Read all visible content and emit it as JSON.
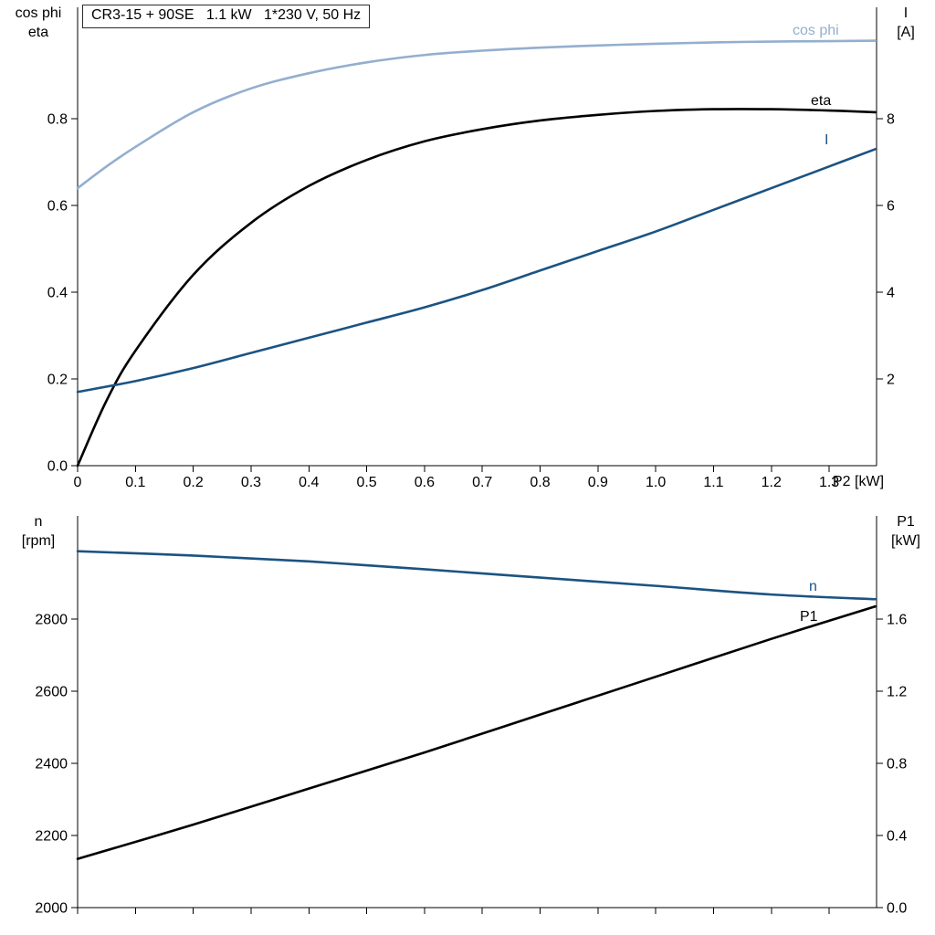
{
  "chart_data": [
    {
      "type": "line",
      "title": "CR3-15 + 90SE   1.1 kW   1*230 V, 50 Hz",
      "axis_left_label": [
        "cos phi",
        "eta"
      ],
      "axis_right_label": [
        "I",
        "[A]"
      ],
      "xlabel": "P2 [kW]",
      "grid": false,
      "legend_position": "inline-right",
      "xlim": [
        0,
        1.382
      ],
      "ylim_left": [
        0,
        1.057
      ],
      "ylim_right": [
        0,
        10.57
      ],
      "xticks": [
        {
          "v": 0,
          "t": "0"
        },
        {
          "v": 0.1,
          "t": "0.1"
        },
        {
          "v": 0.2,
          "t": "0.2"
        },
        {
          "v": 0.3,
          "t": "0.3"
        },
        {
          "v": 0.4,
          "t": "0.4"
        },
        {
          "v": 0.5,
          "t": "0.5"
        },
        {
          "v": 0.6,
          "t": "0.6"
        },
        {
          "v": 0.7,
          "t": "0.7"
        },
        {
          "v": 0.8,
          "t": "0.8"
        },
        {
          "v": 0.9,
          "t": "0.9"
        },
        {
          "v": 1.0,
          "t": "1.0"
        },
        {
          "v": 1.1,
          "t": "1.1"
        },
        {
          "v": 1.2,
          "t": "1.2"
        },
        {
          "v": 1.3,
          "t": "1.3"
        }
      ],
      "yticks_left": [
        {
          "v": 0,
          "t": "0.0"
        },
        {
          "v": 0.2,
          "t": "0.2"
        },
        {
          "v": 0.4,
          "t": "0.4"
        },
        {
          "v": 0.6,
          "t": "0.6"
        },
        {
          "v": 0.8,
          "t": "0.8"
        }
      ],
      "yticks_right": [
        {
          "v": 2,
          "t": "2"
        },
        {
          "v": 4,
          "t": "4"
        },
        {
          "v": 6,
          "t": "6"
        },
        {
          "v": 8,
          "t": "8"
        }
      ],
      "series": [
        {
          "name": "cos phi",
          "axis": "left",
          "color": "#93afce",
          "x": [
            0,
            0.05,
            0.1,
            0.2,
            0.3,
            0.4,
            0.5,
            0.6,
            0.7,
            0.8,
            0.9,
            1.0,
            1.1,
            1.2,
            1.3,
            1.38
          ],
          "y": [
            0.64,
            0.69,
            0.735,
            0.815,
            0.87,
            0.905,
            0.93,
            0.947,
            0.957,
            0.964,
            0.969,
            0.973,
            0.976,
            0.978,
            0.979,
            0.98
          ]
        },
        {
          "name": "eta",
          "axis": "left",
          "color": "#000000",
          "x": [
            0,
            0.05,
            0.1,
            0.2,
            0.3,
            0.4,
            0.5,
            0.6,
            0.7,
            0.8,
            0.9,
            1.0,
            1.1,
            1.2,
            1.3,
            1.38
          ],
          "y": [
            0,
            0.15,
            0.265,
            0.44,
            0.56,
            0.645,
            0.705,
            0.748,
            0.776,
            0.796,
            0.809,
            0.818,
            0.822,
            0.822,
            0.819,
            0.815
          ]
        },
        {
          "name": "I",
          "axis": "right",
          "color": "#1b5382",
          "x": [
            0,
            0.1,
            0.2,
            0.3,
            0.4,
            0.5,
            0.6,
            0.7,
            0.8,
            0.9,
            1.0,
            1.1,
            1.2,
            1.3,
            1.38
          ],
          "y": [
            1.7,
            1.95,
            2.25,
            2.6,
            2.95,
            3.3,
            3.65,
            4.05,
            4.5,
            4.95,
            5.4,
            5.9,
            6.4,
            6.9,
            7.3
          ]
        }
      ]
    },
    {
      "type": "line",
      "title": "",
      "axis_left_label": [
        "n",
        "[rpm]"
      ],
      "axis_right_label": [
        "P1",
        "[kW]"
      ],
      "xlabel": "",
      "grid": false,
      "legend_position": "inline-right",
      "xlim": [
        0,
        1.382
      ],
      "ylim_left": [
        2000,
        3086
      ],
      "ylim_right": [
        0,
        2.172
      ],
      "xticks": [
        {
          "v": 0,
          "t": ""
        },
        {
          "v": 0.1,
          "t": ""
        },
        {
          "v": 0.2,
          "t": ""
        },
        {
          "v": 0.3,
          "t": ""
        },
        {
          "v": 0.4,
          "t": ""
        },
        {
          "v": 0.5,
          "t": ""
        },
        {
          "v": 0.6,
          "t": ""
        },
        {
          "v": 0.7,
          "t": ""
        },
        {
          "v": 0.8,
          "t": ""
        },
        {
          "v": 0.9,
          "t": ""
        },
        {
          "v": 1.0,
          "t": ""
        },
        {
          "v": 1.1,
          "t": ""
        },
        {
          "v": 1.2,
          "t": ""
        },
        {
          "v": 1.3,
          "t": ""
        }
      ],
      "yticks_left": [
        {
          "v": 2000,
          "t": "2000"
        },
        {
          "v": 2200,
          "t": "2200"
        },
        {
          "v": 2400,
          "t": "2400"
        },
        {
          "v": 2600,
          "t": "2600"
        },
        {
          "v": 2800,
          "t": "2800"
        }
      ],
      "yticks_right": [
        {
          "v": 0,
          "t": "0.0"
        },
        {
          "v": 0.4,
          "t": "0.4"
        },
        {
          "v": 0.8,
          "t": "0.8"
        },
        {
          "v": 1.2,
          "t": "1.2"
        },
        {
          "v": 1.6,
          "t": "1.6"
        }
      ],
      "series": [
        {
          "name": "n",
          "axis": "left",
          "color": "#1b5382",
          "x": [
            0,
            0.2,
            0.4,
            0.6,
            0.8,
            1.0,
            1.2,
            1.38
          ],
          "y": [
            2988,
            2976,
            2960,
            2938,
            2915,
            2892,
            2868,
            2855
          ]
        },
        {
          "name": "P1",
          "axis": "right",
          "color": "#000000",
          "x": [
            0,
            0.2,
            0.4,
            0.6,
            0.8,
            1.0,
            1.2,
            1.38
          ],
          "y": [
            0.27,
            0.46,
            0.66,
            0.86,
            1.07,
            1.28,
            1.49,
            1.67
          ]
        }
      ]
    }
  ]
}
